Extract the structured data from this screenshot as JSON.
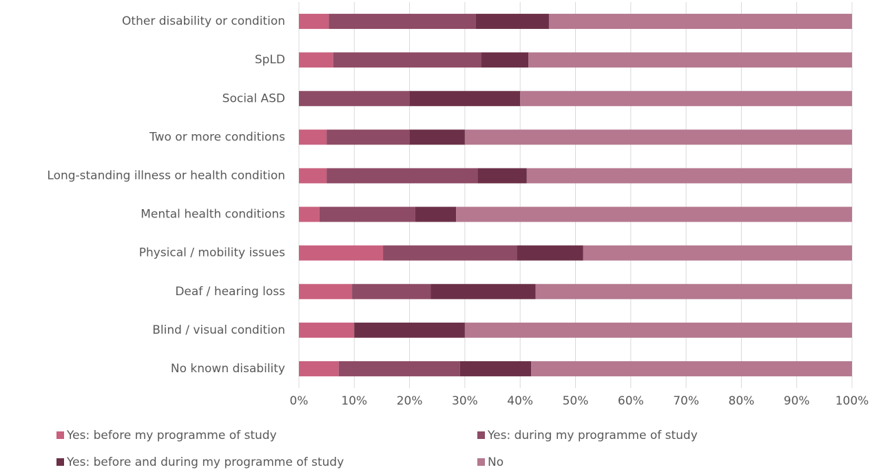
{
  "chart_data": {
    "type": "stacked_bar_horizontal",
    "categories": [
      "Other disability or condition",
      "SpLD",
      "Social ASD",
      "Two or more conditions",
      "Long-standing illness or health condition",
      "Mental health conditions",
      "Physical / mobility issues",
      "Deaf / hearing loss",
      "Blind / visual condition",
      "No known disability"
    ],
    "series": [
      {
        "name": "Yes: before my programme of study",
        "color": "#c9607e",
        "values": [
          5.4,
          6.2,
          0,
          5,
          5.0,
          3.7,
          15.2,
          9.6,
          10,
          7.2
        ]
      },
      {
        "name": "Yes: during my programme of study",
        "color": "#8e4b65",
        "values": [
          26.6,
          26.8,
          20,
          15,
          27.3,
          17.3,
          24.2,
          14.2,
          0,
          21.9
        ]
      },
      {
        "name": "Yes: before and during my programme of study",
        "color": "#6b3047",
        "values": [
          13.2,
          8.5,
          20,
          10,
          8.9,
          7.4,
          12.0,
          19.0,
          20,
          12.9
        ]
      },
      {
        "name": "No",
        "color": "#b5788f",
        "values": [
          54.8,
          58.5,
          60,
          70,
          58.8,
          71.6,
          48.6,
          57.2,
          70,
          58.0
        ]
      }
    ],
    "xlim": [
      0,
      100
    ],
    "xticks": [
      {
        "value": 0,
        "label": "0%"
      },
      {
        "value": 10,
        "label": "10%"
      },
      {
        "value": 20,
        "label": "20%"
      },
      {
        "value": 30,
        "label": "30%"
      },
      {
        "value": 40,
        "label": "40%"
      },
      {
        "value": 50,
        "label": "50%"
      },
      {
        "value": 60,
        "label": "60%"
      },
      {
        "value": 70,
        "label": "70%"
      },
      {
        "value": 80,
        "label": "80%"
      },
      {
        "value": 90,
        "label": "90%"
      },
      {
        "value": 100,
        "label": "100%"
      }
    ],
    "grid": true
  }
}
